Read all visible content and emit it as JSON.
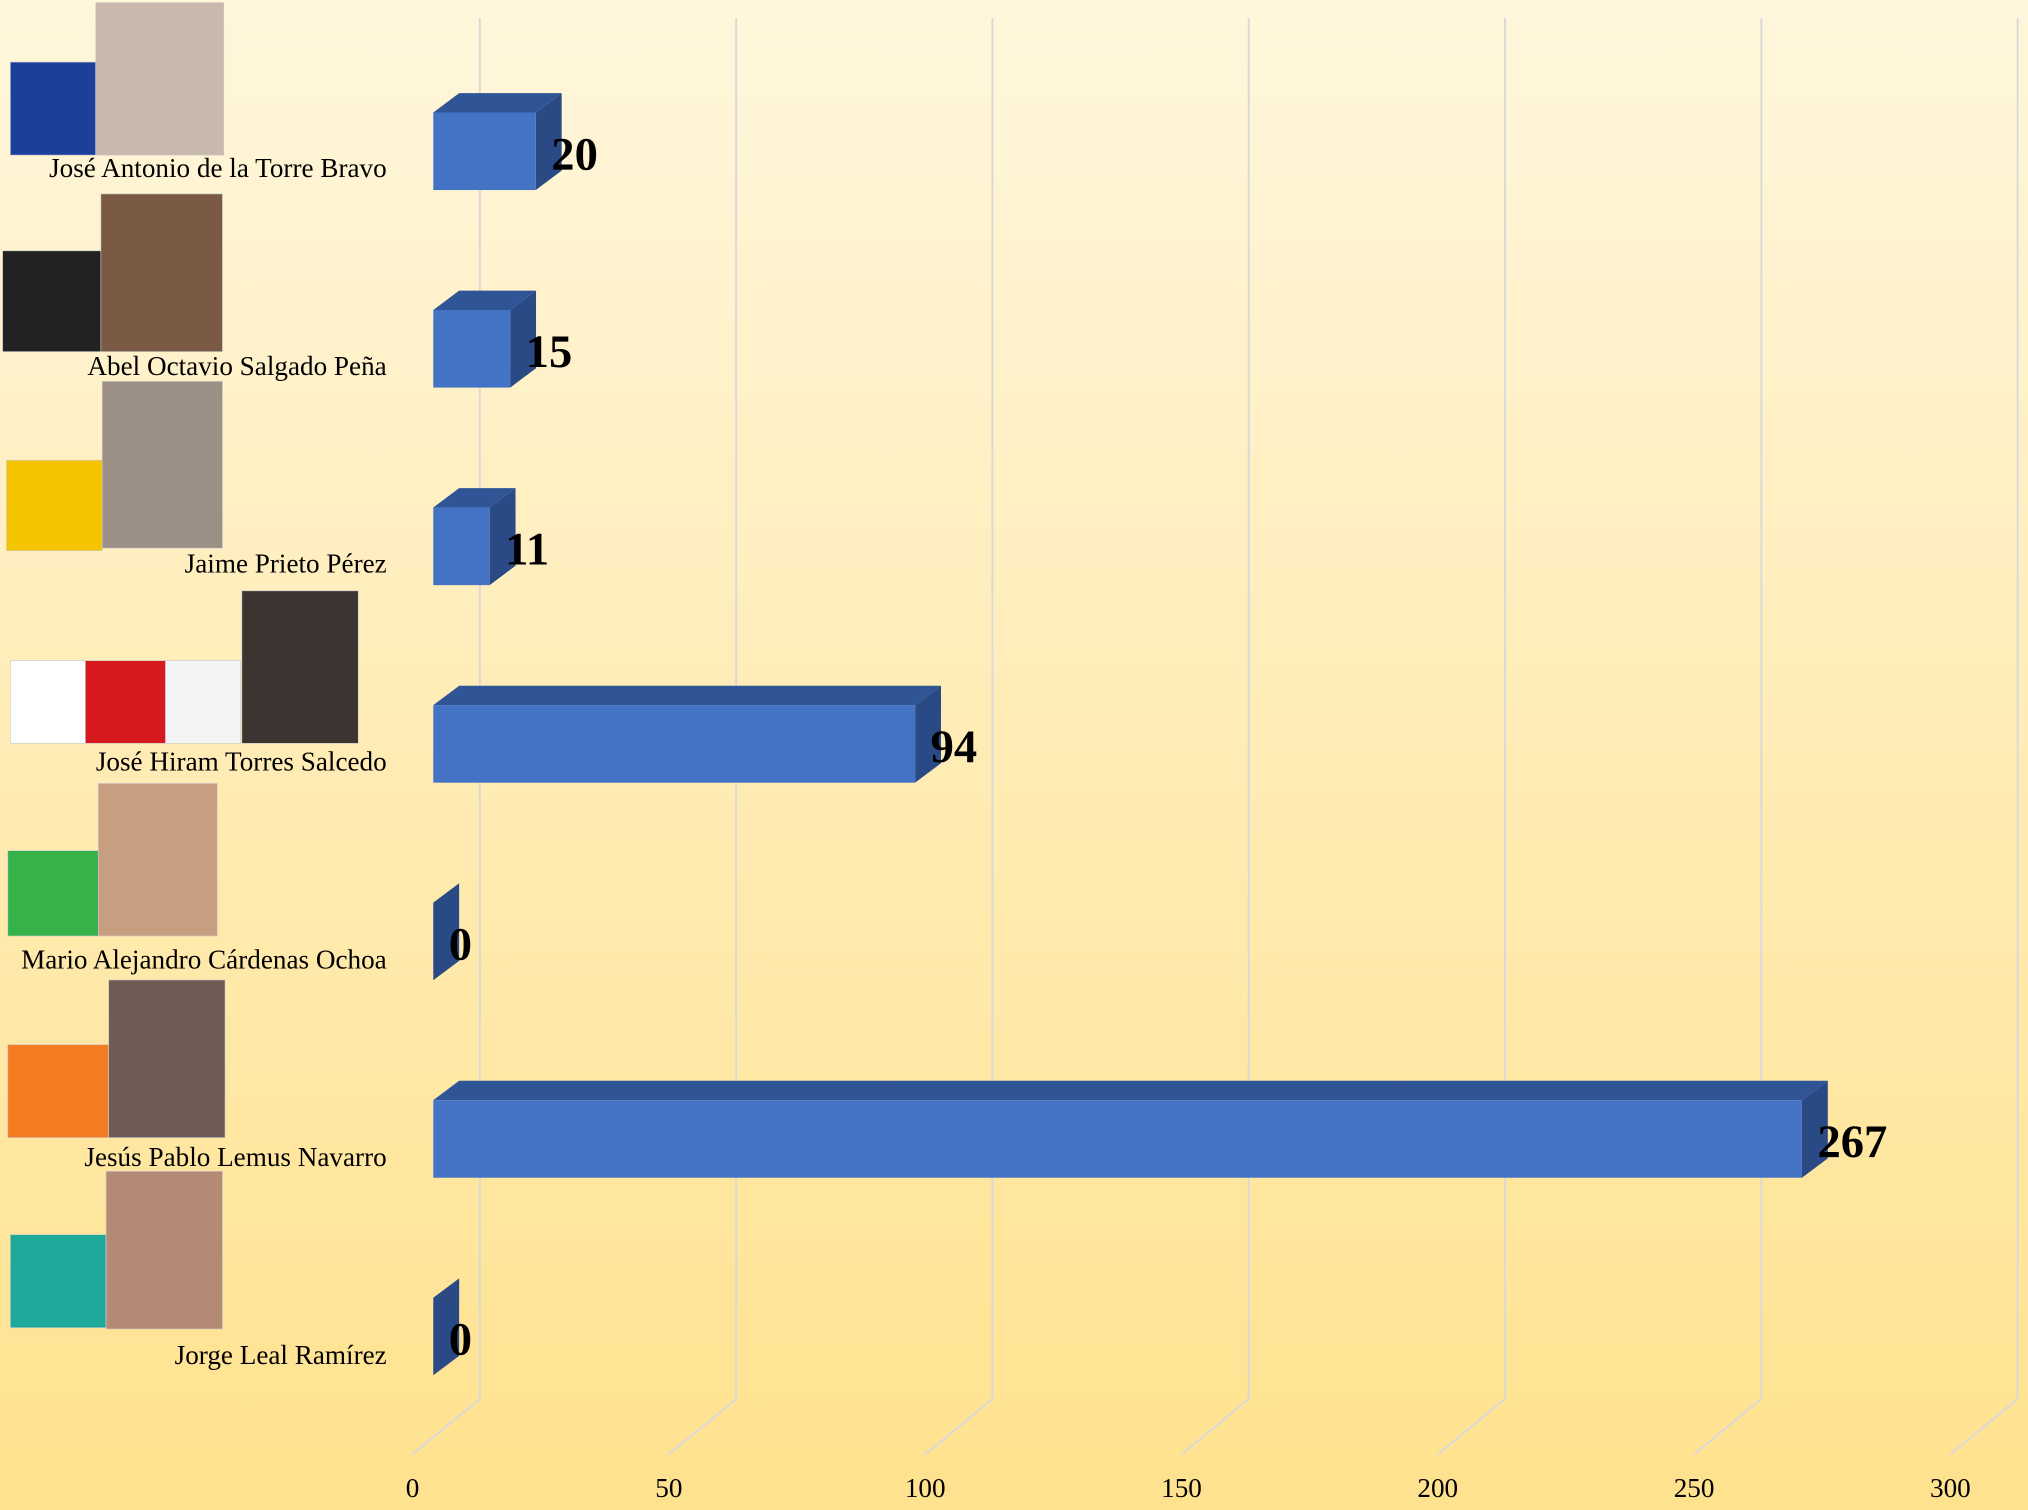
{
  "chart_data": {
    "type": "bar3d",
    "categories": [
      "José Antonio de la Torre Bravo",
      "Abel Octavio Salgado Peña",
      "Jaime Prieto Pérez",
      "José Hiram Torres Salcedo",
      "Mario Alejandro Cárdenas Ochoa",
      "Jesús Pablo Lemus Navarro",
      "Jorge Leal Ramírez"
    ],
    "values": [
      20,
      15,
      11,
      94,
      0,
      267,
      0
    ],
    "color": "#4472c4",
    "xlim": [
      0,
      300
    ],
    "xticks": [
      0,
      50,
      100,
      150,
      200,
      250,
      300
    ],
    "grid": true
  }
}
